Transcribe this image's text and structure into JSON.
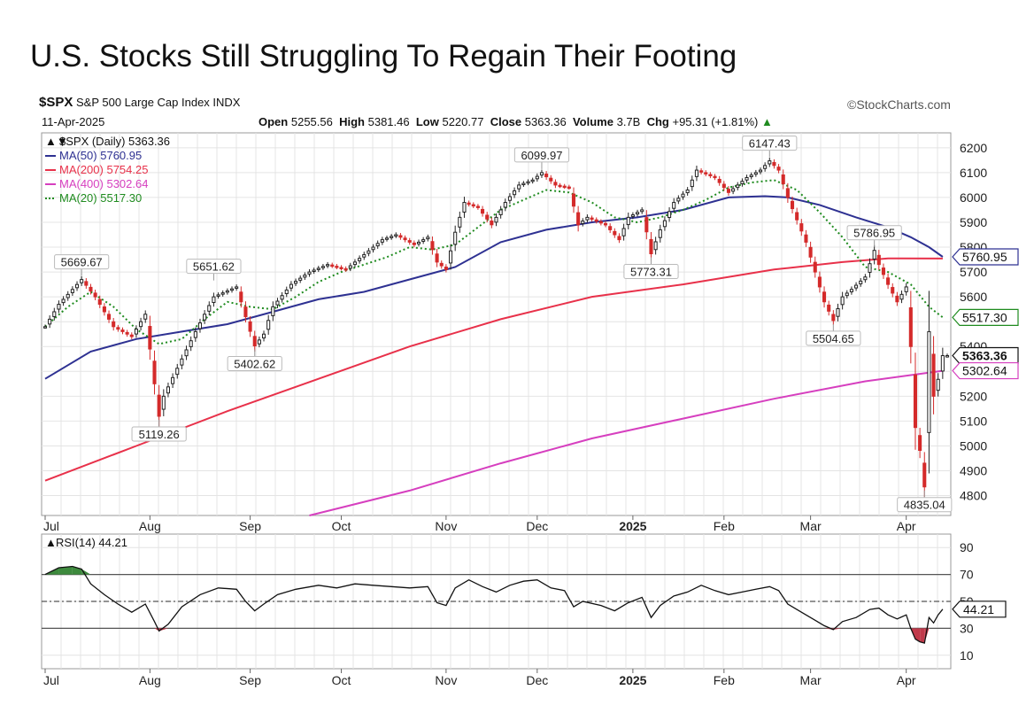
{
  "title": "U.S. Stocks Still Struggling To Regain Their Footing",
  "header": {
    "symbol": "$SPX",
    "name": "S&P 500 Large Cap Index INDX",
    "source": "©StockCharts.com",
    "date": "11-Apr-2025",
    "open_label": "Open",
    "open": "5255.56",
    "high_label": "High",
    "high": "5381.46",
    "low_label": "Low",
    "low": "5220.77",
    "close_label": "Close",
    "close": "5363.36",
    "volume_label": "Volume",
    "volume": "3.7B",
    "chg_label": "Chg",
    "chg": "+95.31 (+1.81%)"
  },
  "colors": {
    "ma50": "#2e3192",
    "ma200": "#e8314a",
    "ma400": "#d63fbf",
    "ma20": "#1f8b1f",
    "up": "#222222",
    "down": "#d42a2a",
    "grid": "#e4e4e4",
    "rsi_fill": "#3d8a3d"
  },
  "chart_data": [
    {
      "type": "candlestick",
      "legend": [
        {
          "label": "$SPX (Daily) 5363.36",
          "key": "price"
        },
        {
          "label": "MA(50) 5760.95",
          "key": "ma50"
        },
        {
          "label": "MA(200) 5754.25",
          "key": "ma200"
        },
        {
          "label": "MA(400) 5302.64",
          "key": "ma400"
        },
        {
          "label": "MA(20) 5517.30",
          "key": "ma20"
        }
      ],
      "ylim": [
        4720,
        6260
      ],
      "y_ticks": [
        4800,
        4900,
        5000,
        5100,
        5200,
        5300,
        5400,
        5500,
        5600,
        5700,
        5800,
        5900,
        6000,
        6100,
        6200
      ],
      "x_ticks": [
        {
          "label": "Jul",
          "t": 0
        },
        {
          "label": "Aug",
          "t": 23
        },
        {
          "label": "Sep",
          "t": 45
        },
        {
          "label": "Oct",
          "t": 65
        },
        {
          "label": "Nov",
          "t": 88
        },
        {
          "label": "Dec",
          "t": 108
        },
        {
          "label": "2025",
          "t": 129,
          "bold": true
        },
        {
          "label": "Feb",
          "t": 149
        },
        {
          "label": "Mar",
          "t": 168
        },
        {
          "label": "Apr",
          "t": 189
        }
      ],
      "t_range": [
        0,
        198
      ],
      "price_path": [
        [
          0,
          5480
        ],
        [
          3,
          5570
        ],
        [
          8,
          5669.67
        ],
        [
          11,
          5600
        ],
        [
          15,
          5480
        ],
        [
          19,
          5440
        ],
        [
          22,
          5530
        ],
        [
          24,
          5250
        ],
        [
          25,
          5119.26
        ],
        [
          26,
          5200
        ],
        [
          30,
          5350
        ],
        [
          33,
          5460
        ],
        [
          37,
          5600
        ],
        [
          42,
          5640
        ],
        [
          44,
          5520
        ],
        [
          46,
          5402.62
        ],
        [
          48,
          5450
        ],
        [
          50,
          5560
        ],
        [
          54,
          5650
        ],
        [
          58,
          5700
        ],
        [
          62,
          5730
        ],
        [
          66,
          5710
        ],
        [
          70,
          5770
        ],
        [
          74,
          5830
        ],
        [
          77,
          5850
        ],
        [
          81,
          5810
        ],
        [
          84,
          5840
        ],
        [
          86,
          5740
        ],
        [
          88,
          5710
        ],
        [
          90,
          5860
        ],
        [
          92,
          5980
        ],
        [
          95,
          5960
        ],
        [
          98,
          5890
        ],
        [
          101,
          5980
        ],
        [
          104,
          6050
        ],
        [
          107,
          6070
        ],
        [
          109,
          6099.97
        ],
        [
          112,
          6050
        ],
        [
          115,
          6040
        ],
        [
          117,
          5890
        ],
        [
          119,
          5920
        ],
        [
          123,
          5890
        ],
        [
          126,
          5830
        ],
        [
          128,
          5920
        ],
        [
          131,
          5950
        ],
        [
          133,
          5773.31
        ],
        [
          135,
          5870
        ],
        [
          138,
          5980
        ],
        [
          141,
          6030
        ],
        [
          143,
          6110
        ],
        [
          147,
          6080
        ],
        [
          150,
          6020
        ],
        [
          152,
          6050
        ],
        [
          154,
          6080
        ],
        [
          157,
          6110
        ],
        [
          159,
          6147.43
        ],
        [
          161,
          6110
        ],
        [
          163,
          6000
        ],
        [
          165,
          5910
        ],
        [
          167,
          5820
        ],
        [
          169,
          5700
        ],
        [
          171,
          5580
        ],
        [
          173,
          5504.65
        ],
        [
          175,
          5600
        ],
        [
          177,
          5630
        ],
        [
          180,
          5680
        ],
        [
          182,
          5786.95
        ],
        [
          183,
          5730
        ],
        [
          185,
          5650
        ],
        [
          187,
          5580
        ],
        [
          189,
          5640
        ],
        [
          190,
          5400
        ],
        [
          191,
          5074
        ],
        [
          192,
          4982
        ],
        [
          193,
          4835.04
        ],
        [
          194,
          5460
        ],
        [
          195,
          5200
        ],
        [
          196,
          5268
        ],
        [
          197,
          5363.36
        ]
      ],
      "ma50": [
        [
          0,
          5270
        ],
        [
          10,
          5380
        ],
        [
          20,
          5430
        ],
        [
          30,
          5460
        ],
        [
          40,
          5490
        ],
        [
          50,
          5540
        ],
        [
          60,
          5590
        ],
        [
          70,
          5620
        ],
        [
          80,
          5670
        ],
        [
          90,
          5720
        ],
        [
          100,
          5820
        ],
        [
          110,
          5870
        ],
        [
          120,
          5900
        ],
        [
          130,
          5920
        ],
        [
          140,
          5950
        ],
        [
          150,
          6000
        ],
        [
          158,
          6005
        ],
        [
          163,
          6000
        ],
        [
          170,
          5970
        ],
        [
          178,
          5920
        ],
        [
          185,
          5880
        ],
        [
          190,
          5840
        ],
        [
          194,
          5800
        ],
        [
          197,
          5760.95
        ]
      ],
      "ma200": [
        [
          0,
          4860
        ],
        [
          20,
          5000
        ],
        [
          40,
          5140
        ],
        [
          60,
          5270
        ],
        [
          80,
          5400
        ],
        [
          100,
          5510
        ],
        [
          120,
          5600
        ],
        [
          140,
          5650
        ],
        [
          160,
          5710
        ],
        [
          175,
          5740
        ],
        [
          185,
          5755
        ],
        [
          197,
          5754.25
        ]
      ],
      "ma400": [
        [
          58,
          4720
        ],
        [
          80,
          4820
        ],
        [
          100,
          4930
        ],
        [
          120,
          5030
        ],
        [
          140,
          5110
        ],
        [
          160,
          5190
        ],
        [
          180,
          5260
        ],
        [
          197,
          5302.64
        ]
      ],
      "ma20": [
        [
          0,
          5480
        ],
        [
          5,
          5560
        ],
        [
          10,
          5620
        ],
        [
          15,
          5560
        ],
        [
          20,
          5470
        ],
        [
          25,
          5410
        ],
        [
          30,
          5430
        ],
        [
          35,
          5510
        ],
        [
          40,
          5580
        ],
        [
          45,
          5560
        ],
        [
          50,
          5550
        ],
        [
          55,
          5600
        ],
        [
          60,
          5660
        ],
        [
          65,
          5700
        ],
        [
          70,
          5730
        ],
        [
          75,
          5760
        ],
        [
          80,
          5800
        ],
        [
          85,
          5790
        ],
        [
          90,
          5810
        ],
        [
          95,
          5880
        ],
        [
          100,
          5950
        ],
        [
          105,
          5990
        ],
        [
          110,
          6030
        ],
        [
          115,
          6020
        ],
        [
          120,
          5980
        ],
        [
          125,
          5920
        ],
        [
          130,
          5900
        ],
        [
          135,
          5920
        ],
        [
          140,
          5950
        ],
        [
          145,
          5990
        ],
        [
          150,
          6040
        ],
        [
          155,
          6060
        ],
        [
          160,
          6070
        ],
        [
          165,
          6030
        ],
        [
          170,
          5940
        ],
        [
          175,
          5840
        ],
        [
          180,
          5720
        ],
        [
          185,
          5700
        ],
        [
          190,
          5650
        ],
        [
          194,
          5560
        ],
        [
          197,
          5517.3
        ]
      ],
      "annotations": [
        {
          "t": 8,
          "value": 5669.67,
          "label": "5669.67",
          "pos": "above"
        },
        {
          "t": 25,
          "value": 5119.26,
          "label": "5119.26",
          "pos": "below"
        },
        {
          "t": 37,
          "value": 5651.62,
          "label": "5651.62",
          "pos": "above"
        },
        {
          "t": 46,
          "value": 5402.62,
          "label": "5402.62",
          "pos": "below"
        },
        {
          "t": 109,
          "value": 6099.97,
          "label": "6099.97",
          "pos": "above"
        },
        {
          "t": 133,
          "value": 5773.31,
          "label": "5773.31",
          "pos": "below"
        },
        {
          "t": 159,
          "value": 6147.43,
          "label": "6147.43",
          "pos": "above"
        },
        {
          "t": 173,
          "value": 5504.65,
          "label": "5504.65",
          "pos": "below"
        },
        {
          "t": 182,
          "value": 5786.95,
          "label": "5786.95",
          "pos": "above"
        },
        {
          "t": 193,
          "value": 4835.04,
          "label": "4835.04",
          "pos": "below"
        }
      ],
      "right_tags": [
        {
          "value": 5760.95,
          "label": "5760.95",
          "key": "ma50"
        },
        {
          "value": 5517.3,
          "label": "5517.30",
          "key": "ma20"
        },
        {
          "value": 5363.36,
          "label": "5363.36",
          "key": "price"
        },
        {
          "value": 5302.64,
          "label": "5302.64",
          "key": "ma400"
        }
      ]
    },
    {
      "type": "line",
      "title": "RSI(14) 44.21",
      "ylim": [
        0,
        100
      ],
      "y_ticks": [
        10,
        30,
        50,
        70,
        90
      ],
      "levels": [
        30,
        50,
        70
      ],
      "current": {
        "value": 44.21,
        "label": "44.21"
      },
      "series": [
        [
          0,
          70
        ],
        [
          3,
          75
        ],
        [
          6,
          76
        ],
        [
          8,
          74
        ],
        [
          10,
          63
        ],
        [
          13,
          55
        ],
        [
          16,
          48
        ],
        [
          19,
          42
        ],
        [
          22,
          48
        ],
        [
          24,
          35
        ],
        [
          25,
          28
        ],
        [
          27,
          33
        ],
        [
          30,
          46
        ],
        [
          34,
          55
        ],
        [
          38,
          60
        ],
        [
          42,
          59
        ],
        [
          44,
          50
        ],
        [
          46,
          43
        ],
        [
          48,
          48
        ],
        [
          51,
          55
        ],
        [
          55,
          59
        ],
        [
          60,
          62
        ],
        [
          64,
          60
        ],
        [
          68,
          63
        ],
        [
          72,
          62
        ],
        [
          76,
          61
        ],
        [
          80,
          60
        ],
        [
          84,
          61
        ],
        [
          86,
          49
        ],
        [
          88,
          47
        ],
        [
          90,
          60
        ],
        [
          93,
          66
        ],
        [
          96,
          61
        ],
        [
          99,
          57
        ],
        [
          102,
          62
        ],
        [
          105,
          65
        ],
        [
          108,
          66
        ],
        [
          111,
          60
        ],
        [
          114,
          58
        ],
        [
          116,
          46
        ],
        [
          118,
          50
        ],
        [
          122,
          47
        ],
        [
          125,
          43
        ],
        [
          128,
          49
        ],
        [
          131,
          53
        ],
        [
          133,
          38
        ],
        [
          135,
          47
        ],
        [
          138,
          54
        ],
        [
          141,
          57
        ],
        [
          144,
          62
        ],
        [
          147,
          58
        ],
        [
          150,
          55
        ],
        [
          153,
          57
        ],
        [
          156,
          59
        ],
        [
          159,
          61
        ],
        [
          161,
          58
        ],
        [
          163,
          48
        ],
        [
          166,
          42
        ],
        [
          169,
          36
        ],
        [
          171,
          32
        ],
        [
          173,
          29
        ],
        [
          175,
          35
        ],
        [
          178,
          38
        ],
        [
          181,
          44
        ],
        [
          183,
          45
        ],
        [
          185,
          40
        ],
        [
          187,
          37
        ],
        [
          189,
          40
        ],
        [
          190,
          30
        ],
        [
          191,
          22
        ],
        [
          192,
          20
        ],
        [
          193,
          19
        ],
        [
          194,
          38
        ],
        [
          195,
          34
        ],
        [
          196,
          40
        ],
        [
          197,
          44.21
        ]
      ]
    }
  ],
  "rsi_axis_labels": [
    "Jul",
    "Aug",
    "Sep",
    "Oct",
    "Nov",
    "Dec",
    "2025",
    "Feb",
    "Mar",
    "Apr"
  ]
}
